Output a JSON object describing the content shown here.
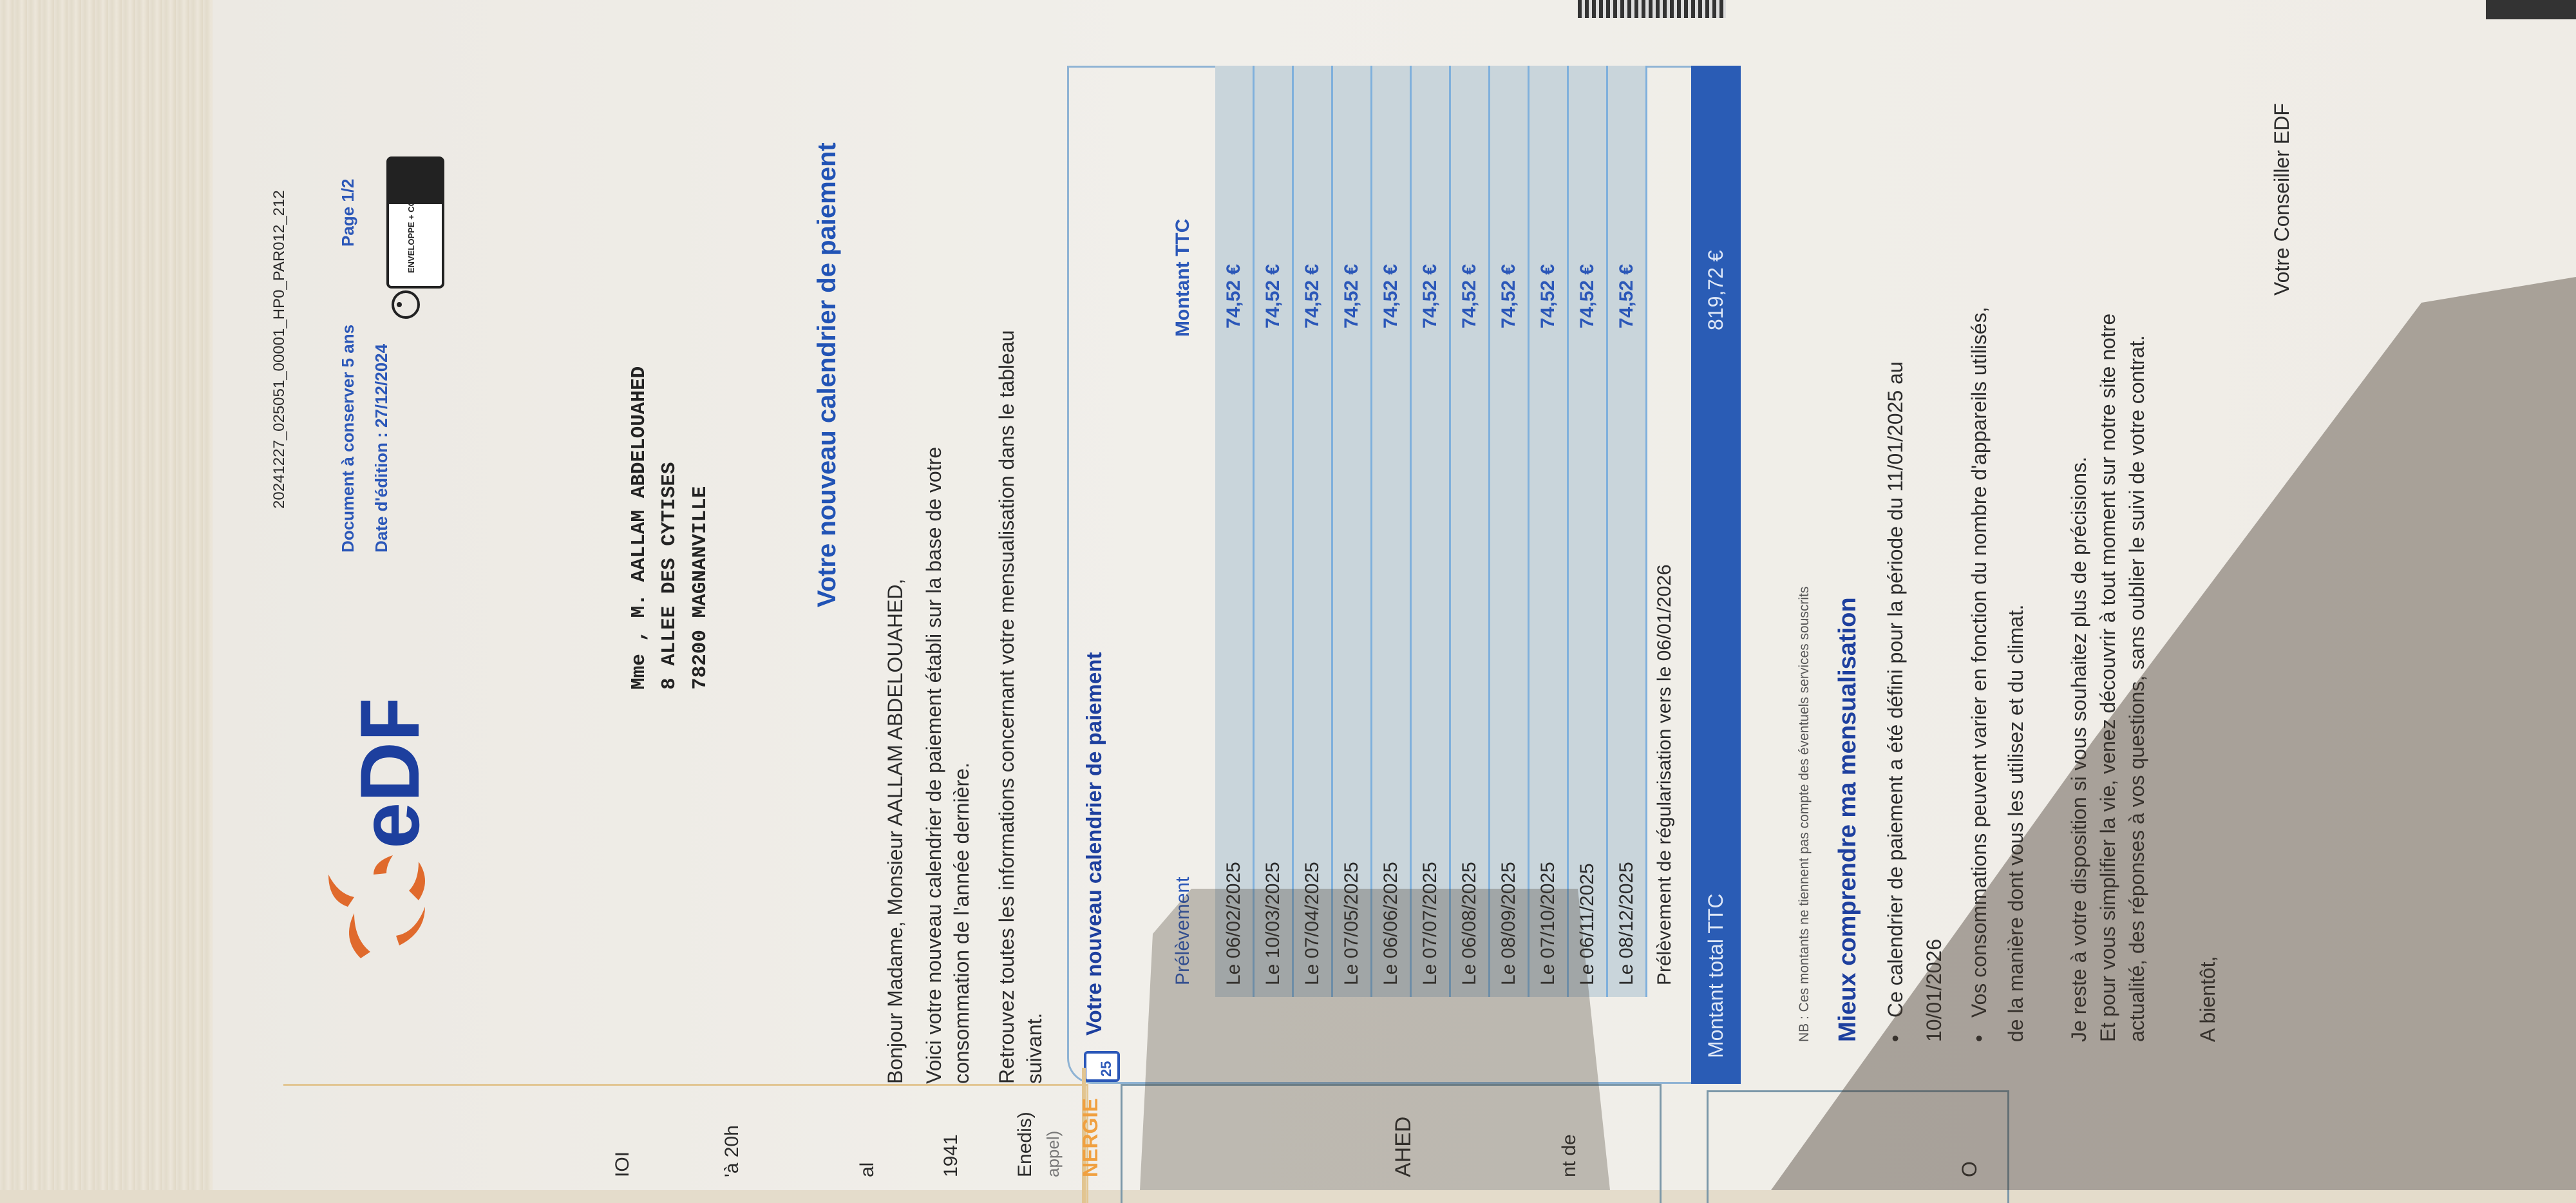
{
  "header": {
    "reference": "20241227_025051_00001_HP0_PAR012_212",
    "keep_notice": "Document à conserver 5 ans",
    "page": "Page 1/2",
    "edition_date": "Date d'édition : 27/12/2024",
    "logo_text": "eDF",
    "envelope_badge": "ENVELOPPE + COURRIER"
  },
  "recipient": {
    "name": "Mme , M. AALLAM ABDELOUAHED",
    "street": "8 ALLEE DES CYTISES",
    "city": "78200 MAGNANVILLE"
  },
  "letter": {
    "title": "Votre nouveau calendrier de paiement",
    "greeting": "Bonjour Madame, Monsieur AALLAM ABDELOUAHED,",
    "intro_line1": "Voici votre nouveau calendrier de paiement établi sur la base de votre",
    "intro_line2": "consommation de l'année dernière.",
    "find_line1": "Retrouvez toutes les informations concernant votre mensualisation dans le tableau",
    "find_line2": "suivant."
  },
  "schedule": {
    "title": "Votre nouveau calendrier de paiement",
    "calendar_icon_day": "25",
    "col_date": "Prélèvement",
    "col_amount": "Montant TTC",
    "rows": [
      {
        "date": "Le 06/02/2025",
        "amount": "74,52 €"
      },
      {
        "date": "Le 10/03/2025",
        "amount": "74,52 €"
      },
      {
        "date": "Le 07/04/2025",
        "amount": "74,52 €"
      },
      {
        "date": "Le 07/05/2025",
        "amount": "74,52 €"
      },
      {
        "date": "Le 06/06/2025",
        "amount": "74,52 €"
      },
      {
        "date": "Le 07/07/2025",
        "amount": "74,52 €"
      },
      {
        "date": "Le 06/08/2025",
        "amount": "74,52 €"
      },
      {
        "date": "Le 08/09/2025",
        "amount": "74,52 €"
      },
      {
        "date": "Le 07/10/2025",
        "amount": "74,52 €"
      },
      {
        "date": "Le 06/11/2025",
        "amount": "74,52 €"
      },
      {
        "date": "Le 08/12/2025",
        "amount": "74,52 €"
      }
    ],
    "regularisation": "Prélèvement de régularisation vers le 06/01/2026",
    "total_label": "Montant total TTC",
    "total_value": "819,72 €",
    "note": "NB : Ces montants ne tiennent pas compte des éventuels services souscrits"
  },
  "explain": {
    "title": "Mieux comprendre ma mensualisation",
    "bullet1_line1": "Ce calendrier de paiement a été défini pour la période du 11/01/2025 au",
    "bullet1_line2": "10/01/2026",
    "bullet2_line1": "Vos consommations peuvent varier en fonction du nombre d'appareils utilisés,",
    "bullet2_line2": "de la manière dont vous les utilisez et du climat.",
    "closing_line1": "Je reste à votre disposition si vous souhaitez plus de précisions.",
    "closing_line2": "Et pour vous simplifier la vie, venez découvrir à tout moment sur notre site notre",
    "closing_line3": "actualité, des réponses à vos questions, sans oublier le suivi de votre contrat.",
    "bye": "A bientôt,",
    "signature": "Votre Conseiller EDF"
  },
  "side_panel": {
    "frag1": "IOI",
    "frag2": "'à 20h",
    "frag3": "al",
    "frag4": "1941",
    "frag5": "Enedis)",
    "frag6": "appel)",
    "frag7": "NERGIE",
    "frag8": "AHED",
    "frag9": "nt de",
    "frag10": "O"
  },
  "colors": {
    "edf_blue": "#2b57b8",
    "edf_orange": "#e06a2c",
    "total_bar": "#2a5cb5",
    "row_fill": "#c9d5db"
  }
}
